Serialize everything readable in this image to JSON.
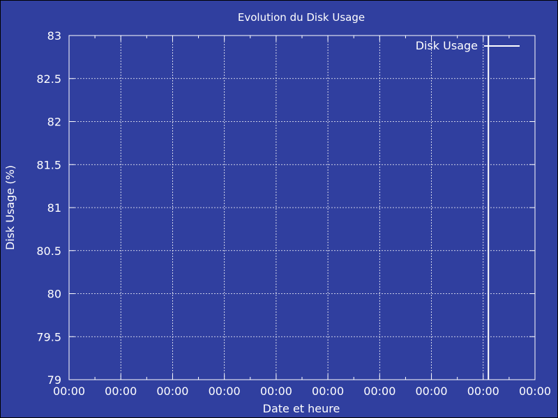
{
  "chart_data": {
    "type": "line",
    "title": "Evolution du Disk Usage",
    "xlabel": "Date et heure",
    "ylabel": "Disk Usage (%)",
    "ylim": [
      79,
      83
    ],
    "y_ticks": [
      "79",
      "79.5",
      "80",
      "80.5",
      "81",
      "81.5",
      "82",
      "82.5",
      "83"
    ],
    "x_ticks": [
      "00:00",
      "00:00",
      "00:00",
      "00:00",
      "00:00",
      "00:00",
      "00:00",
      "00:00",
      "00:00",
      "00:00"
    ],
    "grid": true,
    "legend_position": "top-right",
    "series": [
      {
        "name": "Disk Usage",
        "color": "#ffffff",
        "x_fraction": [
          0.9,
          0.9
        ],
        "values": [
          79,
          83
        ]
      }
    ]
  },
  "colors": {
    "background": "#303f9f",
    "foreground": "#ffffff"
  }
}
